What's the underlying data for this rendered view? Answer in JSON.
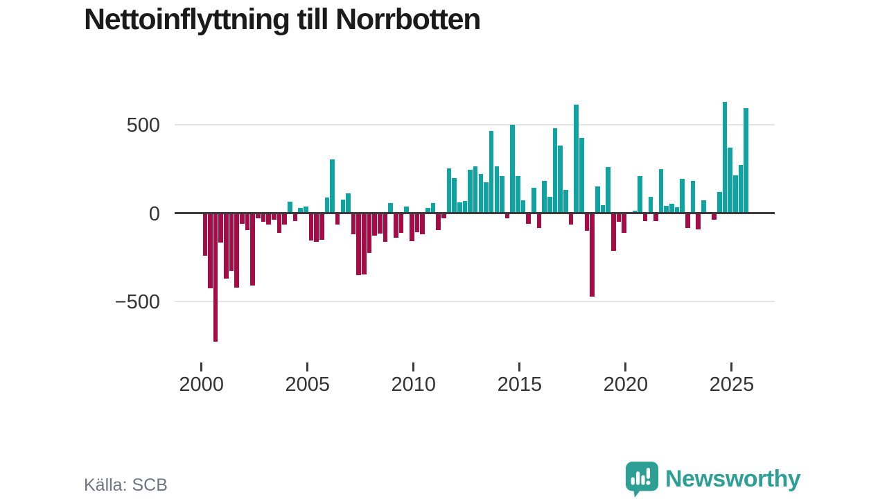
{
  "title": "Nettoinflyttning till Norrbotten",
  "source": "Källa: SCB",
  "brand": {
    "name": "Newsworthy"
  },
  "colors": {
    "positive": "#0fa3a1",
    "negative": "#a50b45",
    "grid": "#e4e4e4",
    "axis_line": "#3a3a3a",
    "tick_text": "#333333",
    "title_text": "#1b1b1b",
    "source_text": "#6f7580",
    "brand_teal": "#2e9f94"
  },
  "chart_data": {
    "type": "bar",
    "title": "Nettoinflyttning till Norrbotten",
    "xlabel": "",
    "ylabel": "",
    "grid": "horizontal",
    "legend": "none",
    "ylim": [
      -760,
      660
    ],
    "yticks": [
      {
        "value": 500,
        "label": "500"
      },
      {
        "value": 0,
        "label": "0"
      },
      {
        "value": -500,
        "label": "−500"
      }
    ],
    "xticks": [
      {
        "year": 2000,
        "label": "2000"
      },
      {
        "year": 2005,
        "label": "2005"
      },
      {
        "year": 2010,
        "label": "2010"
      },
      {
        "year": 2015,
        "label": "2015"
      },
      {
        "year": 2020,
        "label": "2020"
      },
      {
        "year": 2025,
        "label": "2025"
      }
    ],
    "x": [
      "2000-Q1",
      "2000-Q2",
      "2000-Q3",
      "2000-Q4",
      "2001-Q1",
      "2001-Q2",
      "2001-Q3",
      "2001-Q4",
      "2002-Q1",
      "2002-Q2",
      "2002-Q3",
      "2002-Q4",
      "2003-Q1",
      "2003-Q2",
      "2003-Q3",
      "2003-Q4",
      "2004-Q1",
      "2004-Q2",
      "2004-Q3",
      "2004-Q4",
      "2005-Q1",
      "2005-Q2",
      "2005-Q3",
      "2005-Q4",
      "2006-Q1",
      "2006-Q2",
      "2006-Q3",
      "2006-Q4",
      "2007-Q1",
      "2007-Q2",
      "2007-Q3",
      "2007-Q4",
      "2008-Q1",
      "2008-Q2",
      "2008-Q3",
      "2008-Q4",
      "2009-Q1",
      "2009-Q2",
      "2009-Q3",
      "2009-Q4",
      "2010-Q1",
      "2010-Q2",
      "2010-Q3",
      "2010-Q4",
      "2011-Q1",
      "2011-Q2",
      "2011-Q3",
      "2011-Q4",
      "2012-Q1",
      "2012-Q2",
      "2012-Q3",
      "2012-Q4",
      "2013-Q1",
      "2013-Q2",
      "2013-Q3",
      "2013-Q4",
      "2014-Q1",
      "2014-Q2",
      "2014-Q3",
      "2014-Q4",
      "2015-Q1",
      "2015-Q2",
      "2015-Q3",
      "2015-Q4",
      "2016-Q1",
      "2016-Q2",
      "2016-Q3",
      "2016-Q4",
      "2017-Q1",
      "2017-Q2",
      "2017-Q3",
      "2017-Q4",
      "2018-Q1",
      "2018-Q2",
      "2018-Q3",
      "2018-Q4",
      "2019-Q1",
      "2019-Q2",
      "2019-Q3",
      "2019-Q4",
      "2020-Q1",
      "2020-Q2",
      "2020-Q3",
      "2020-Q4",
      "2021-Q1",
      "2021-Q2",
      "2021-Q3",
      "2021-Q4",
      "2022-Q1",
      "2022-Q2",
      "2022-Q3",
      "2022-Q4",
      "2023-Q1",
      "2023-Q2",
      "2023-Q3",
      "2023-Q4",
      "2024-Q1",
      "2024-Q2",
      "2024-Q3",
      "2024-Q4",
      "2025-Q1",
      "2025-Q2",
      "2025-Q3"
    ],
    "values": [
      -235,
      -420,
      -720,
      -160,
      -365,
      -320,
      -415,
      -55,
      -90,
      -405,
      -25,
      -45,
      -60,
      -30,
      -105,
      -60,
      60,
      -40,
      25,
      35,
      -150,
      -158,
      -144,
      86,
      300,
      -58,
      72,
      108,
      -114,
      -345,
      -340,
      -220,
      -120,
      -110,
      -158,
      54,
      -132,
      -105,
      33,
      -152,
      -100,
      -113,
      25,
      52,
      -92,
      -25,
      248,
      194,
      55,
      66,
      240,
      260,
      218,
      172,
      460,
      260,
      206,
      -25,
      495,
      204,
      70,
      -56,
      140,
      -80,
      180,
      88,
      478,
      378,
      126,
      -60,
      610,
      420,
      -96,
      -465,
      148,
      40,
      255,
      -206,
      -42,
      -105,
      0,
      10,
      205,
      -41,
      88,
      -40,
      245,
      38,
      50,
      30,
      192,
      -79,
      177,
      -88,
      70,
      0,
      -30,
      114,
      627,
      368,
      209,
      269,
      592
    ]
  }
}
